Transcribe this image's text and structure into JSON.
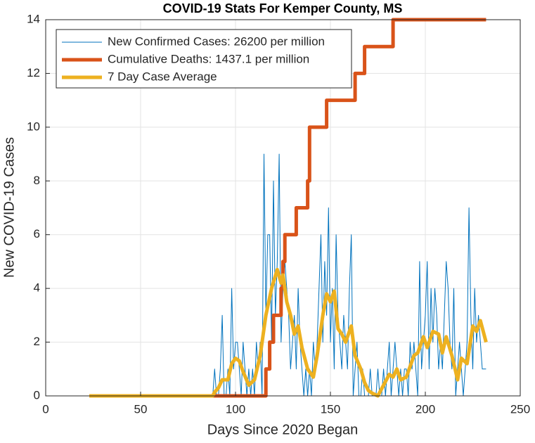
{
  "chart_data": {
    "type": "line",
    "title": "COVID-19 Stats For Kemper County, MS",
    "xlabel": "Days Since 2020 Began",
    "ylabel": "New COVID-19 Cases",
    "xlim": [
      0,
      250
    ],
    "xticks": [
      0,
      50,
      100,
      150,
      200,
      250
    ],
    "ylim": [
      0,
      14
    ],
    "yticks": [
      0,
      2,
      4,
      6,
      8,
      10,
      12,
      14
    ],
    "grid": true,
    "legend_location": "northwest",
    "series": [
      {
        "name": "New Confirmed Cases: 26200 per million",
        "color": "#0072BD",
        "line_width": 1,
        "x": [
          23,
          88,
          89,
          90,
          91,
          92,
          93,
          94,
          95,
          96,
          97,
          98,
          99,
          100,
          101,
          102,
          103,
          104,
          105,
          106,
          107,
          108,
          109,
          110,
          111,
          112,
          113,
          114,
          115,
          116,
          117,
          118,
          119,
          120,
          121,
          122,
          123,
          124,
          125,
          126,
          127,
          128,
          129,
          130,
          131,
          132,
          133,
          134,
          135,
          136,
          137,
          138,
          139,
          140,
          141,
          142,
          143,
          144,
          145,
          146,
          147,
          148,
          149,
          150,
          151,
          152,
          153,
          154,
          155,
          156,
          157,
          158,
          159,
          160,
          161,
          162,
          163,
          164,
          165,
          166,
          167,
          168,
          169,
          170,
          171,
          172,
          173,
          174,
          175,
          176,
          177,
          178,
          179,
          180,
          181,
          182,
          183,
          184,
          185,
          186,
          187,
          188,
          189,
          190,
          191,
          192,
          193,
          194,
          195,
          196,
          197,
          198,
          199,
          200,
          201,
          202,
          203,
          204,
          205,
          206,
          207,
          208,
          209,
          210,
          211,
          212,
          213,
          214,
          215,
          216,
          217,
          218,
          219,
          220,
          221,
          222,
          223,
          224,
          225,
          226,
          227,
          228,
          229,
          230,
          231,
          232
        ],
        "values": [
          0,
          0,
          1,
          0,
          0,
          1,
          3,
          0,
          0,
          1,
          0,
          4,
          1,
          2,
          2,
          1,
          0,
          2,
          1,
          0,
          1,
          0,
          1,
          0,
          2,
          1,
          2,
          0,
          9,
          3,
          6,
          6,
          2,
          8,
          3,
          5,
          9,
          2,
          4,
          5,
          4,
          3,
          1,
          2,
          3,
          1,
          4,
          2,
          1,
          0,
          1,
          0,
          1,
          0,
          2,
          1,
          2,
          4,
          6,
          2,
          5,
          3,
          7,
          2,
          4,
          1,
          6,
          3,
          2,
          1,
          3,
          2,
          1,
          4,
          6,
          0,
          1,
          2,
          0,
          0,
          1,
          0,
          0,
          0,
          1,
          0,
          0,
          0,
          1,
          0,
          0,
          1,
          0,
          1,
          2,
          0,
          1,
          2,
          1,
          0,
          1,
          0,
          1,
          1,
          0,
          2,
          1,
          2,
          1,
          0,
          5,
          1,
          2,
          3,
          5,
          1,
          4,
          2,
          4,
          3,
          1,
          2,
          1,
          3,
          5,
          4,
          2,
          1,
          4,
          0,
          1,
          2,
          1,
          0,
          1,
          2,
          7,
          3,
          1,
          4,
          2,
          3,
          2,
          1,
          1,
          1
        ]
      },
      {
        "name": "Cumulative Deaths: 1437.1 per million",
        "color": "#D95319",
        "line_width": 5,
        "x": [
          23,
          116,
          116,
          118,
          118,
          120,
          120,
          124,
          124,
          125,
          125,
          126,
          126,
          132,
          132,
          138,
          138,
          139,
          139,
          148,
          148,
          163,
          163,
          168,
          168,
          183,
          183,
          232
        ],
        "values": [
          0,
          0,
          1,
          1,
          2,
          2,
          3,
          3,
          4,
          4,
          5,
          5,
          6,
          6,
          7,
          7,
          8,
          8,
          10,
          10,
          11,
          11,
          12,
          12,
          13,
          13,
          14,
          14
        ]
      },
      {
        "name": "7 Day Case Average",
        "color": "#EDB120",
        "line_width": 5,
        "x": [
          23,
          88,
          89,
          91,
          93,
          96,
          98,
          100,
          102,
          104,
          107,
          110,
          113,
          116,
          119,
          122,
          124,
          125,
          127,
          129,
          131,
          133,
          135,
          138,
          141,
          143,
          146,
          148,
          150,
          152,
          154,
          156,
          158,
          161,
          163,
          166,
          168,
          170,
          172,
          175,
          178,
          181,
          183,
          185,
          187,
          190,
          194,
          196,
          199,
          201,
          204,
          207,
          209,
          211,
          214,
          217,
          219,
          222,
          225,
          227,
          229,
          232
        ],
        "values": [
          0,
          0,
          0.14,
          0.3,
          0.6,
          0.6,
          1.2,
          1.4,
          1.3,
          0.9,
          0.4,
          0.6,
          1.5,
          3.0,
          4.0,
          4.7,
          4.2,
          4.5,
          3.5,
          3.0,
          2.3,
          2.6,
          1.8,
          1.0,
          0.7,
          1.5,
          3.0,
          3.8,
          3.5,
          3.9,
          2.5,
          2.3,
          2.0,
          2.6,
          1.5,
          1.0,
          0.5,
          0.2,
          0.1,
          0,
          0.4,
          0.8,
          0.7,
          1.0,
          0.6,
          0.7,
          1.5,
          1.6,
          2.2,
          1.8,
          2.4,
          2.3,
          1.6,
          2.2,
          1.5,
          0.6,
          1.4,
          1.2,
          2.6,
          2.4,
          2.8,
          2.0
        ]
      }
    ]
  }
}
